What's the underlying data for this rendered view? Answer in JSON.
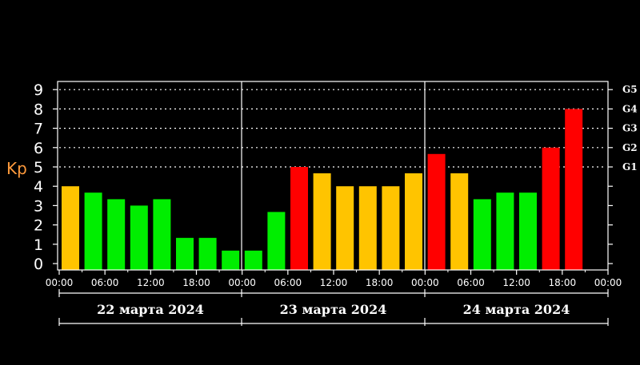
{
  "chart_data": {
    "type": "bar",
    "ylabel": "Kp",
    "ylim": [
      0,
      9
    ],
    "yticks": [
      "0",
      "1",
      "2",
      "3",
      "4",
      "5",
      "6",
      "7",
      "8",
      "9"
    ],
    "storm_levels": [
      {
        "label": "G1",
        "kp": 5
      },
      {
        "label": "G2",
        "kp": 6
      },
      {
        "label": "G3",
        "kp": 7
      },
      {
        "label": "G4",
        "kp": 8
      },
      {
        "label": "G5",
        "kp": 9
      }
    ],
    "grid": "dotted at G levels",
    "xtick_labels": [
      "00:00",
      "06:00",
      "12:00",
      "18:00",
      "00:00",
      "06:00",
      "12:00",
      "18:00",
      "00:00",
      "06:00",
      "12:00",
      "18:00",
      "00:00"
    ],
    "days": [
      "22 марта 2024",
      "23 марта 2024",
      "24 марта 2024"
    ],
    "values": [
      4.0,
      3.67,
      3.33,
      3.0,
      3.33,
      1.33,
      1.33,
      0.67,
      0.67,
      2.67,
      5.0,
      4.67,
      4.0,
      4.0,
      4.0,
      4.67,
      5.67,
      4.67,
      3.33,
      3.67,
      3.67,
      6.0,
      8.0
    ],
    "colors": {
      "quiet": "#00ee00",
      "unsettled": "#ffc400",
      "storm": "#ff0000",
      "axis": "#ffffff"
    }
  }
}
